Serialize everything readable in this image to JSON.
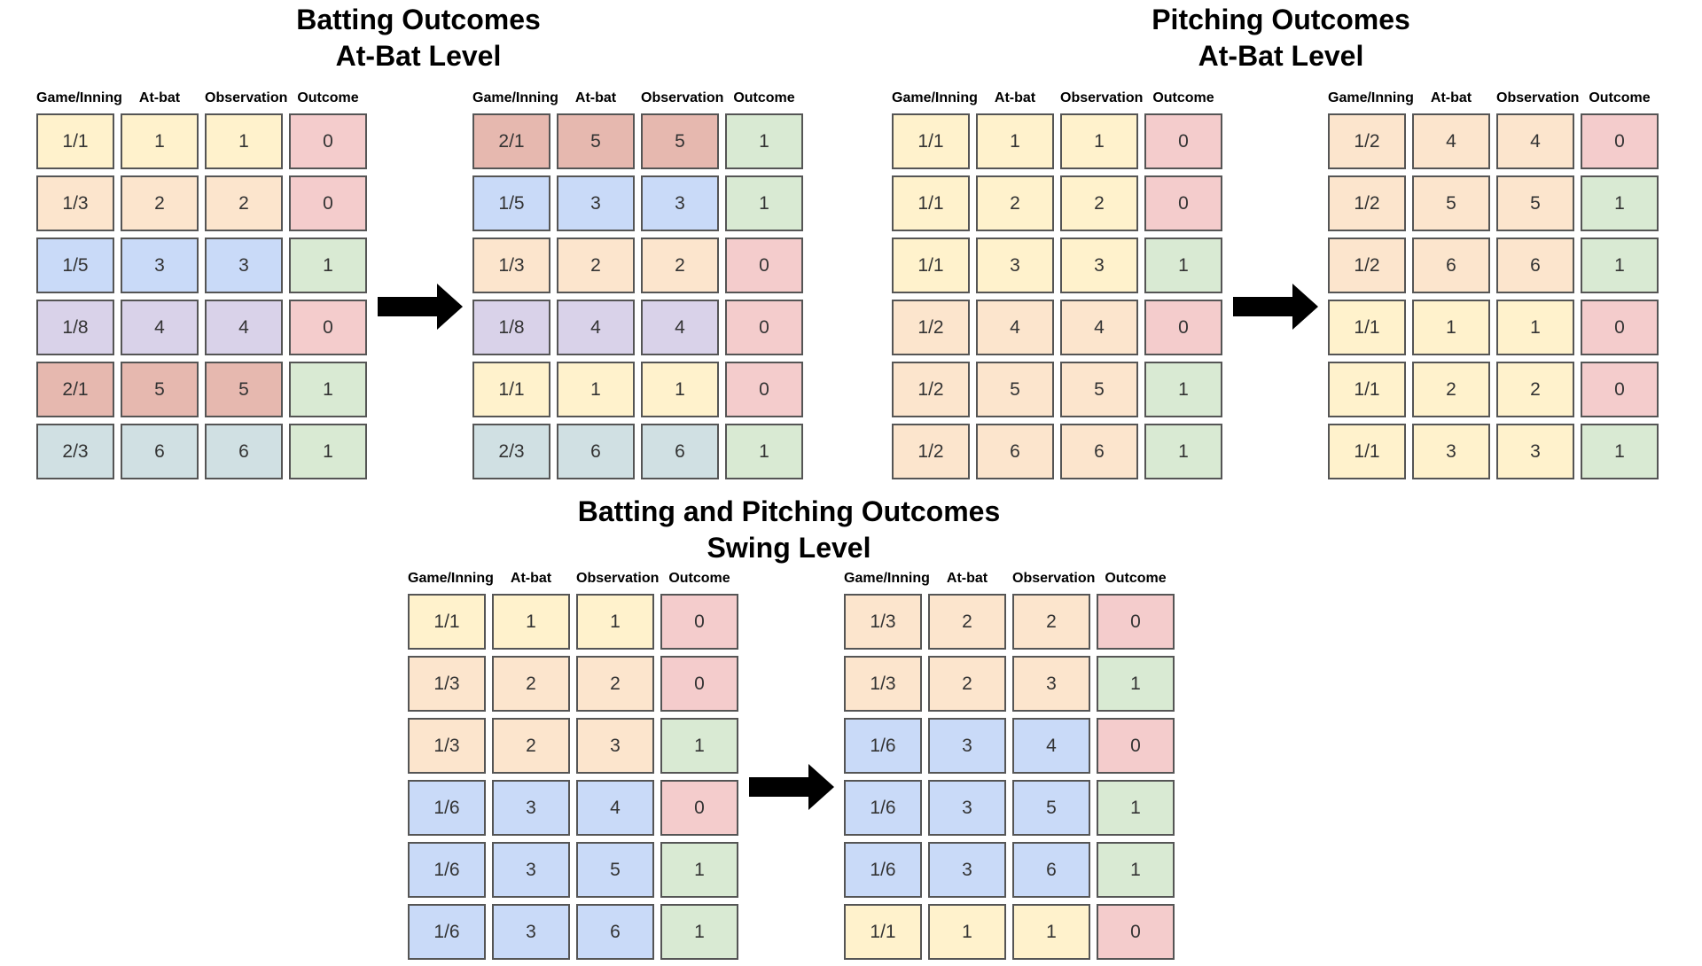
{
  "colors": {
    "g1_1": "#fff2cc",
    "g1_2": "#fce5cd",
    "g1_3": "#fce5cd",
    "g1_5": "#c9daf8",
    "g1_6": "#c9daf8",
    "g1_8": "#d9d2e9",
    "g2_1": "#e6b8af",
    "g2_3": "#d0e0e3",
    "out0": "#f4cccc",
    "out1": "#d9ead3",
    "border": "#555555",
    "arrow": "#000000"
  },
  "headers": [
    "Game/Inning",
    "At-bat",
    "Observation",
    "Outcome"
  ],
  "sections": [
    {
      "title_lines": [
        "Batting Outcomes",
        "At-Bat Level"
      ],
      "tables": [
        {
          "rows": [
            [
              "1/1",
              "1",
              "1",
              "0"
            ],
            [
              "1/3",
              "2",
              "2",
              "0"
            ],
            [
              "1/5",
              "3",
              "3",
              "1"
            ],
            [
              "1/8",
              "4",
              "4",
              "0"
            ],
            [
              "2/1",
              "5",
              "5",
              "1"
            ],
            [
              "2/3",
              "6",
              "6",
              "1"
            ]
          ]
        },
        {
          "rows": [
            [
              "2/1",
              "5",
              "5",
              "1"
            ],
            [
              "1/5",
              "3",
              "3",
              "1"
            ],
            [
              "1/3",
              "2",
              "2",
              "0"
            ],
            [
              "1/8",
              "4",
              "4",
              "0"
            ],
            [
              "1/1",
              "1",
              "1",
              "0"
            ],
            [
              "2/3",
              "6",
              "6",
              "1"
            ]
          ]
        }
      ]
    },
    {
      "title_lines": [
        "Pitching Outcomes",
        "At-Bat Level"
      ],
      "tables": [
        {
          "rows": [
            [
              "1/1",
              "1",
              "1",
              "0"
            ],
            [
              "1/1",
              "2",
              "2",
              "0"
            ],
            [
              "1/1",
              "3",
              "3",
              "1"
            ],
            [
              "1/2",
              "4",
              "4",
              "0"
            ],
            [
              "1/2",
              "5",
              "5",
              "1"
            ],
            [
              "1/2",
              "6",
              "6",
              "1"
            ]
          ]
        },
        {
          "rows": [
            [
              "1/2",
              "4",
              "4",
              "0"
            ],
            [
              "1/2",
              "5",
              "5",
              "1"
            ],
            [
              "1/2",
              "6",
              "6",
              "1"
            ],
            [
              "1/1",
              "1",
              "1",
              "0"
            ],
            [
              "1/1",
              "2",
              "2",
              "0"
            ],
            [
              "1/1",
              "3",
              "3",
              "1"
            ]
          ]
        }
      ]
    },
    {
      "title_lines": [
        "Batting and Pitching Outcomes",
        "Swing Level"
      ],
      "tables": [
        {
          "rows": [
            [
              "1/1",
              "1",
              "1",
              "0"
            ],
            [
              "1/3",
              "2",
              "2",
              "0"
            ],
            [
              "1/3",
              "2",
              "3",
              "1"
            ],
            [
              "1/6",
              "3",
              "4",
              "0"
            ],
            [
              "1/6",
              "3",
              "5",
              "1"
            ],
            [
              "1/6",
              "3",
              "6",
              "1"
            ]
          ]
        },
        {
          "rows": [
            [
              "1/3",
              "2",
              "2",
              "0"
            ],
            [
              "1/3",
              "2",
              "3",
              "1"
            ],
            [
              "1/6",
              "3",
              "4",
              "0"
            ],
            [
              "1/6",
              "3",
              "5",
              "1"
            ],
            [
              "1/6",
              "3",
              "6",
              "1"
            ],
            [
              "1/1",
              "1",
              "1",
              "0"
            ]
          ]
        }
      ]
    }
  ]
}
